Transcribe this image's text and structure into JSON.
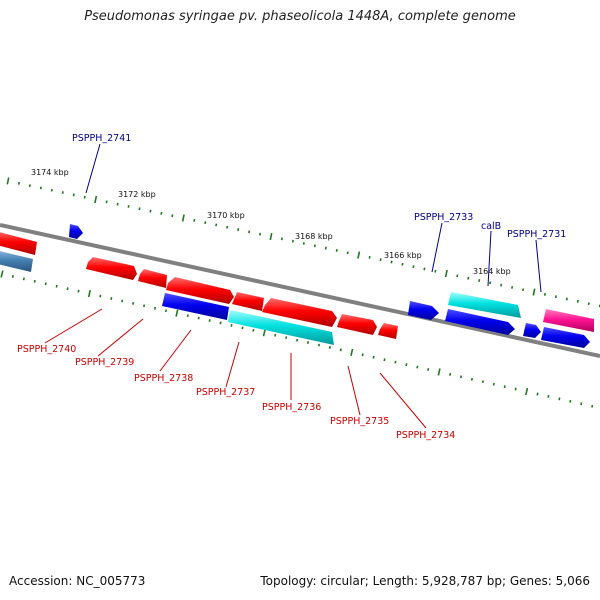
{
  "title": "Pseudomonas syringae pv. phaseolicola 1448A, complete genome",
  "footer": {
    "accession": "Accession: NC_005773",
    "summary": "Topology: circular; Length: 5,928,787 bp; Genes: 5,066"
  },
  "colors": {
    "backbone": "#808080",
    "tick": "#1e7a1e",
    "label_blue": "#00008b",
    "label_red": "#cc0000",
    "gene_red": "#ff0000",
    "gene_blue": "#0000ee",
    "gene_cyan": "#00d8d8",
    "gene_pink": "#ff1493",
    "gene_steel": "#4682b4"
  },
  "scale_labels": [
    "3174 kbp",
    "3172 kbp",
    "3170 kbp",
    "3168 kbp",
    "3166 kbp",
    "3164 kbp"
  ],
  "gene_labels_top": [
    "PSPPH_2741",
    "PSPPH_2733",
    "calB",
    "PSPPH_2731"
  ],
  "gene_labels_bottom": [
    "PSPPH_2740",
    "PSPPH_2739",
    "PSPPH_2738",
    "PSPPH_2737",
    "PSPPH_2736",
    "PSPPH_2735",
    "PSPPH_2734"
  ]
}
